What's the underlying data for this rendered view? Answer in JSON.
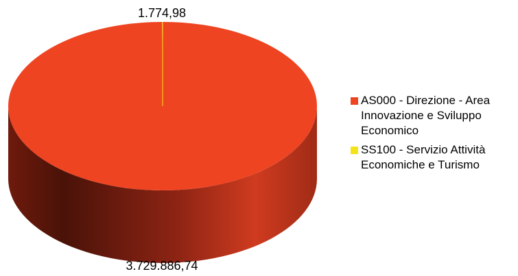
{
  "chart_data": {
    "type": "pie",
    "title": "",
    "style": "3d",
    "series": [
      {
        "name": "AS000 - Direzione - Area\nInnovazione e Sviluppo\nEconomico",
        "value": 3729886.74,
        "label": "3.729.886,74",
        "color": "#ee4422"
      },
      {
        "name": "SS100 - Servizio Attività\nEconomiche e Turismo",
        "value": 1774.98,
        "label": "1.774,98",
        "color": "#f5e31a"
      }
    ],
    "legend": "right"
  }
}
